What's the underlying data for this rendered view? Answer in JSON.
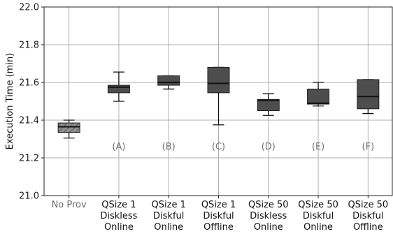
{
  "chart_data": {
    "type": "box",
    "ylabel": "Execution Time (min)",
    "ylim": [
      21.0,
      22.0
    ],
    "yticks": [
      "21.0",
      "21.2",
      "21.4",
      "21.6",
      "21.8",
      "22.0"
    ],
    "grid": true,
    "categories": [
      {
        "lines": [
          "No Prov"
        ],
        "muted": true
      },
      {
        "lines": [
          "QSize 1",
          "Diskless",
          "Online"
        ],
        "muted": false
      },
      {
        "lines": [
          "QSize 1",
          "Diskful",
          "Online"
        ],
        "muted": false
      },
      {
        "lines": [
          "QSize 1",
          "Diskful",
          "Offline"
        ],
        "muted": false
      },
      {
        "lines": [
          "QSize 50",
          "Diskless",
          "Online"
        ],
        "muted": false
      },
      {
        "lines": [
          "QSize 50",
          "Diskful",
          "Online"
        ],
        "muted": false
      },
      {
        "lines": [
          "QSize 50",
          "Diskful",
          "Offline"
        ],
        "muted": false
      }
    ],
    "boxes": [
      {
        "whislo": 21.305,
        "q1": 21.335,
        "med": 21.365,
        "q3": 21.385,
        "whishi": 21.4,
        "hatched": true
      },
      {
        "whislo": 21.5,
        "q1": 21.545,
        "med": 21.575,
        "q3": 21.585,
        "whishi": 21.655,
        "hatched": false
      },
      {
        "whislo": 21.565,
        "q1": 21.585,
        "med": 21.6,
        "q3": 21.635,
        "whishi": 21.635,
        "hatched": false
      },
      {
        "whislo": 21.375,
        "q1": 21.545,
        "med": 21.595,
        "q3": 21.68,
        "whishi": 21.68,
        "hatched": false
      },
      {
        "whislo": 21.425,
        "q1": 21.45,
        "med": 21.505,
        "q3": 21.51,
        "whishi": 21.54,
        "hatched": false
      },
      {
        "whislo": 21.475,
        "q1": 21.485,
        "med": 21.49,
        "q3": 21.565,
        "whishi": 21.6,
        "hatched": false
      },
      {
        "whislo": 21.435,
        "q1": 21.46,
        "med": 21.525,
        "q3": 21.615,
        "whishi": 21.615,
        "hatched": false
      }
    ],
    "annotations": [
      {
        "text": "(A)",
        "category": 1,
        "y": 21.245
      },
      {
        "text": "(B)",
        "category": 2,
        "y": 21.245
      },
      {
        "text": "(C)",
        "category": 3,
        "y": 21.245
      },
      {
        "text": "(D)",
        "category": 4,
        "y": 21.245
      },
      {
        "text": "(E)",
        "category": 5,
        "y": 21.245
      },
      {
        "text": "(F)",
        "category": 6,
        "y": 21.245
      }
    ],
    "colors": {
      "box_fill": "#4d4d4d",
      "hatched_fill": "#8c8c8c",
      "hatch_line": "#5e5e5e",
      "median": "#111111",
      "whisker": "#111111",
      "grid": "#b0b0b0",
      "muted_text": "#6e6e6e",
      "annot_text": "#707070"
    }
  }
}
